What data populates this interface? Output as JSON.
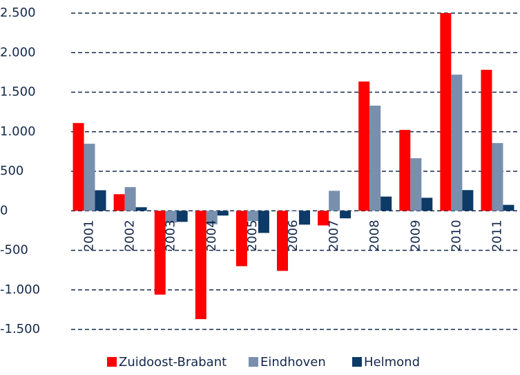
{
  "chart_data": {
    "type": "bar",
    "categories": [
      "2001",
      "2002",
      "2003",
      "2004",
      "2005",
      "2006",
      "2007",
      "2008",
      "2009",
      "2010",
      "2011"
    ],
    "series": [
      {
        "name": "Zuidoost-Brabant",
        "color": "#ff0000",
        "values": [
          1110,
          210,
          -1060,
          -1370,
          -700,
          -760,
          -185,
          1635,
          1023,
          2500,
          1783
        ]
      },
      {
        "name": "Eindhoven",
        "color": "#7890ae",
        "values": [
          848,
          300,
          -150,
          -170,
          -130,
          -5,
          253,
          1330,
          665,
          1722,
          857
        ]
      },
      {
        "name": "Helmond",
        "color": "#0d3a66",
        "values": [
          260,
          45,
          -140,
          -60,
          -280,
          -175,
          -95,
          180,
          165,
          262,
          75
        ]
      }
    ],
    "ylim": [
      -1500,
      2500
    ],
    "yticks": [
      {
        "value": -1500,
        "label": "-1.500"
      },
      {
        "value": -1000,
        "label": "-1.000"
      },
      -500,
      0,
      500,
      {
        "value": 1000,
        "label": "1.000"
      },
      {
        "value": 1500,
        "label": "1.500"
      },
      {
        "value": 2000,
        "label": "2.000"
      },
      {
        "value": 2500,
        "label": "2.500"
      }
    ],
    "grid": true,
    "legend": "bottom"
  }
}
